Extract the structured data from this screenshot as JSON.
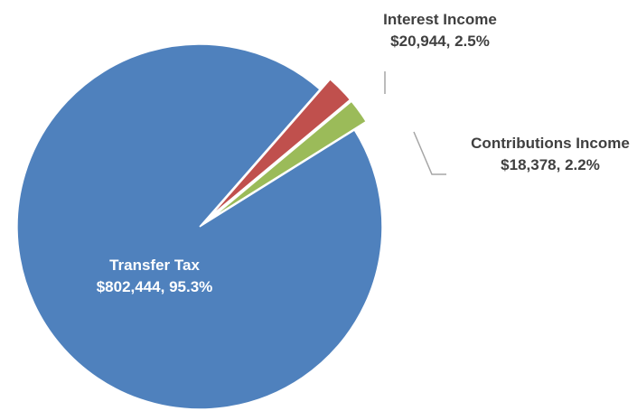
{
  "chart_data": {
    "type": "pie",
    "title": "",
    "slices": [
      {
        "name": "Transfer Tax",
        "value": 802444,
        "value_label": "$802,444",
        "percent": 95.3,
        "percent_label": "95.3%",
        "color": "#4f81bd",
        "exploded": false
      },
      {
        "name": "Interest Income",
        "value": 20944,
        "value_label": "$20,944",
        "percent": 2.5,
        "percent_label": "2.5%",
        "color": "#c0504d",
        "exploded": true
      },
      {
        "name": "Contributions Income",
        "value": 18378,
        "value_label": "$18,378",
        "percent": 2.2,
        "percent_label": "2.2%",
        "color": "#9bbb59",
        "exploded": true
      }
    ],
    "legend": "none",
    "data_labels": "name, value and percent",
    "leader_line_color": "#a6a6a6"
  }
}
